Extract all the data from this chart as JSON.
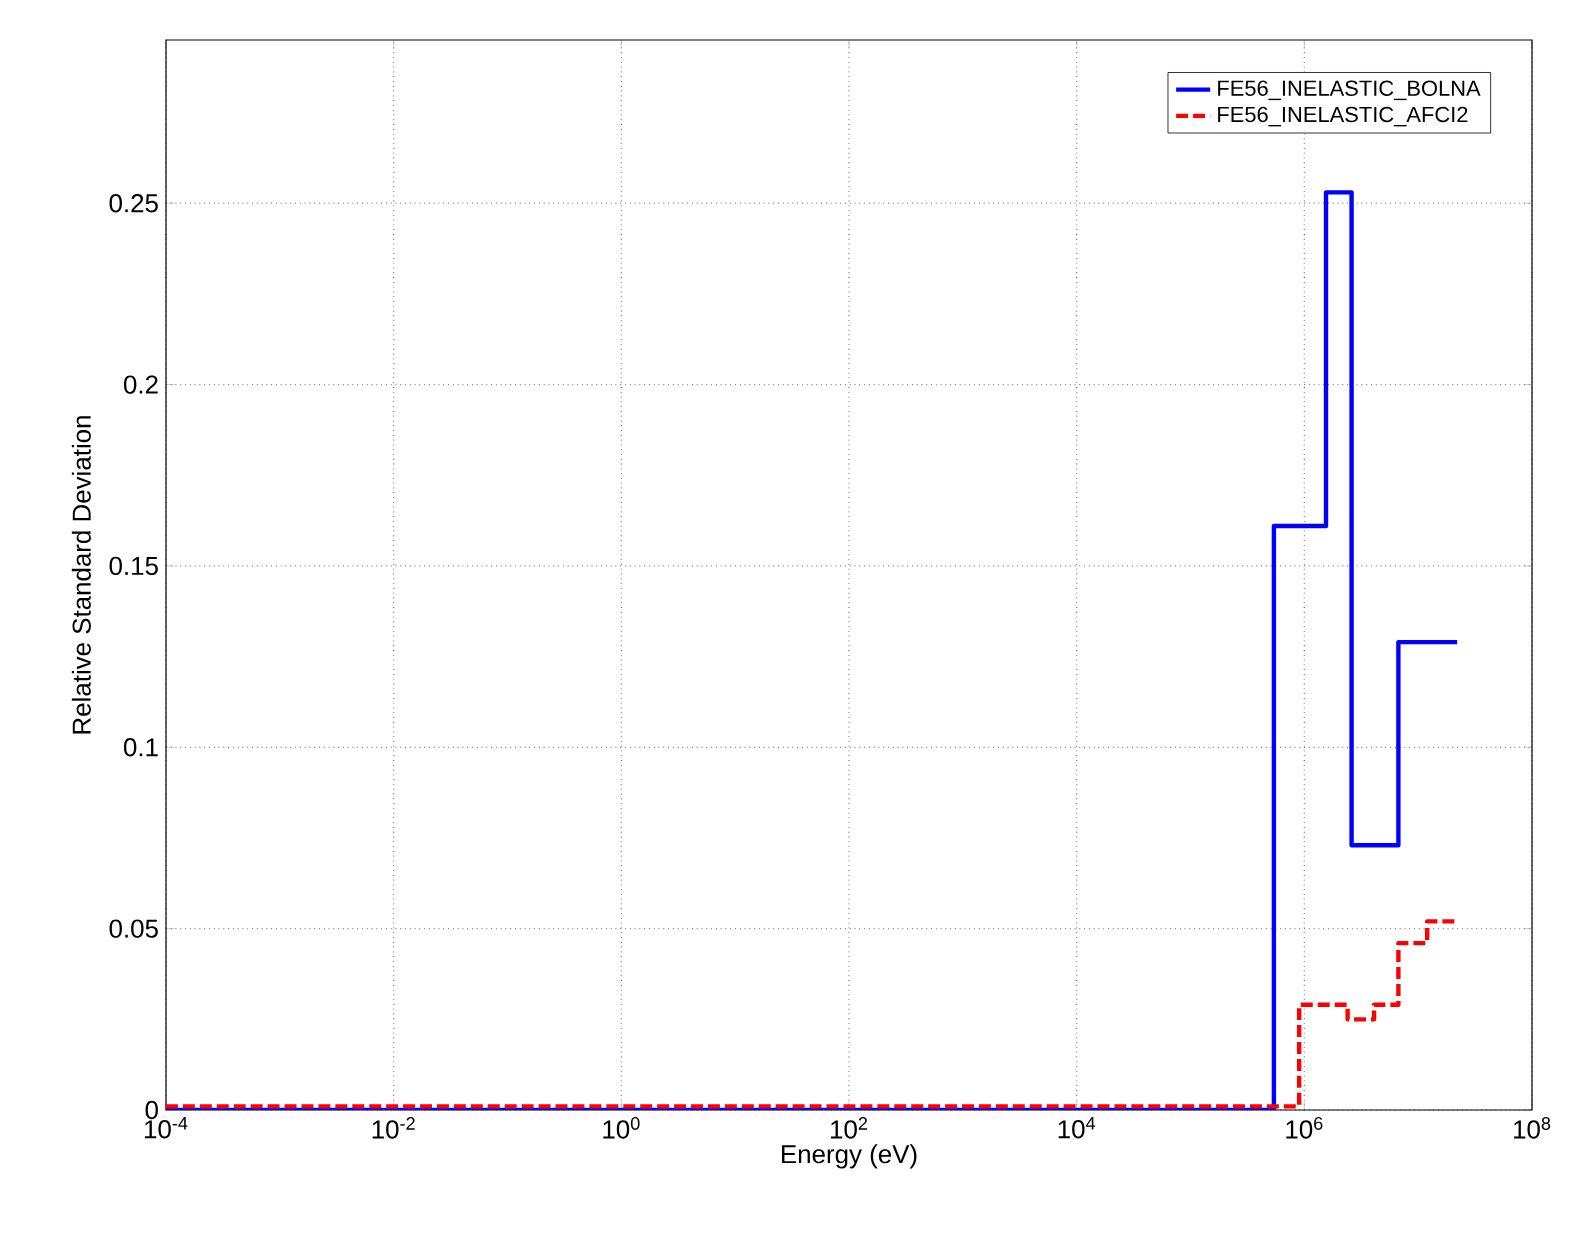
{
  "chart_data": {
    "type": "step",
    "xlabel": "Energy (eV)",
    "ylabel": "Relative Standard Deviation",
    "log": "x",
    "grid": true,
    "legend": "top right",
    "xlim": [
      0.0001,
      100000000
    ],
    "ylim": [
      0,
      0.295
    ],
    "xticks": [
      {
        "value": 0.0001,
        "label": "10$^{-4}$"
      },
      {
        "value": 0.01,
        "label": "10$^{-2}$"
      },
      {
        "value": 1,
        "label": "10$^{0}$"
      },
      {
        "value": 100,
        "label": "10$^{2}$"
      },
      {
        "value": 10000,
        "label": "10$^{4}$"
      },
      {
        "value": 1000000,
        "label": "10$^{6}$"
      },
      {
        "value": 100000000,
        "label": "10$^{8}$"
      }
    ],
    "yticks": [
      0,
      0.05,
      0.1,
      0.15,
      0.2,
      0.25
    ],
    "series": [
      {
        "name": "FE56_INELASTIC_BOLNA",
        "color": "#0000ff",
        "line_style": "solid",
        "x": [
          0.0001,
          540000,
          1550000,
          2600000,
          6700000,
          22000000
        ],
        "values": [
          0,
          0.161,
          0.253,
          0.073,
          0.129,
          0.129
        ]
      },
      {
        "name": "FE56_INELASTIC_AFCI2",
        "color": "#ff0000",
        "line_style": "dashed",
        "x": [
          0.0001,
          900000,
          2400000,
          4100000,
          6700000,
          12000000,
          22000000
        ],
        "values": [
          0.001,
          0.029,
          0.025,
          0.029,
          0.046,
          0.052,
          0.052
        ]
      }
    ]
  }
}
